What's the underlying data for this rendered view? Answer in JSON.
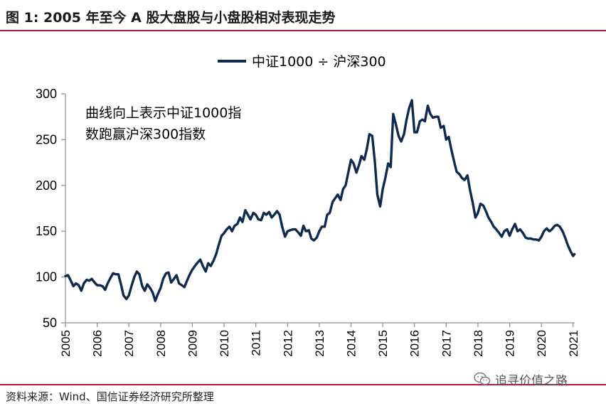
{
  "header": {
    "title": "图 1:  2005 年至今 A 股大盘股与小盘股相对表现走势"
  },
  "footer": {
    "source": "资料来源：Wind、国信证券经济研究所整理",
    "watermark_text": "追寻价值之路",
    "watermark_icon": "wechat-icon"
  },
  "colors": {
    "series": "#0f2a4f",
    "accent_rule": "#b3193a"
  },
  "chart_data": {
    "type": "line",
    "legend_position": "top-center",
    "grid": false,
    "ylim": [
      50,
      300
    ],
    "xlim": [
      2005,
      2021.05
    ],
    "y_ticks": [
      50,
      100,
      150,
      200,
      250,
      300
    ],
    "x_ticks": [
      "2005",
      "2006",
      "2007",
      "2008",
      "2009",
      "2010",
      "2011",
      "2012",
      "2013",
      "2014",
      "2015",
      "2016",
      "2017",
      "2018",
      "2019",
      "2020",
      "2021"
    ],
    "annotation": [
      "曲线向上表示中证1000指",
      "数跑赢沪深300指数"
    ],
    "series": [
      {
        "name": "中证1000 ÷ 沪深300",
        "x": [
          2005.0,
          2005.08,
          2005.17,
          2005.25,
          2005.33,
          2005.42,
          2005.5,
          2005.58,
          2005.67,
          2005.75,
          2005.83,
          2005.92,
          2006.0,
          2006.08,
          2006.17,
          2006.25,
          2006.33,
          2006.42,
          2006.5,
          2006.58,
          2006.67,
          2006.75,
          2006.83,
          2006.92,
          2007.0,
          2007.08,
          2007.17,
          2007.25,
          2007.33,
          2007.42,
          2007.5,
          2007.58,
          2007.67,
          2007.75,
          2007.83,
          2007.92,
          2008.0,
          2008.08,
          2008.17,
          2008.25,
          2008.33,
          2008.42,
          2008.5,
          2008.58,
          2008.67,
          2008.75,
          2008.83,
          2008.92,
          2009.0,
          2009.08,
          2009.17,
          2009.25,
          2009.33,
          2009.42,
          2009.5,
          2009.58,
          2009.67,
          2009.75,
          2009.83,
          2009.92,
          2010.0,
          2010.08,
          2010.17,
          2010.25,
          2010.33,
          2010.42,
          2010.5,
          2010.58,
          2010.67,
          2010.75,
          2010.83,
          2010.92,
          2011.0,
          2011.08,
          2011.17,
          2011.25,
          2011.33,
          2011.42,
          2011.5,
          2011.58,
          2011.67,
          2011.75,
          2011.83,
          2011.92,
          2012.0,
          2012.08,
          2012.17,
          2012.25,
          2012.33,
          2012.42,
          2012.5,
          2012.58,
          2012.67,
          2012.75,
          2012.83,
          2012.92,
          2013.0,
          2013.08,
          2013.17,
          2013.25,
          2013.33,
          2013.42,
          2013.5,
          2013.58,
          2013.67,
          2013.75,
          2013.83,
          2013.92,
          2014.0,
          2014.08,
          2014.17,
          2014.25,
          2014.33,
          2014.42,
          2014.5,
          2014.58,
          2014.67,
          2014.75,
          2014.83,
          2014.92,
          2015.0,
          2015.08,
          2015.17,
          2015.25,
          2015.33,
          2015.42,
          2015.5,
          2015.58,
          2015.67,
          2015.75,
          2015.83,
          2015.92,
          2016.0,
          2016.08,
          2016.17,
          2016.25,
          2016.33,
          2016.42,
          2016.5,
          2016.58,
          2016.67,
          2016.75,
          2016.83,
          2016.92,
          2017.0,
          2017.08,
          2017.17,
          2017.25,
          2017.33,
          2017.42,
          2017.5,
          2017.58,
          2017.67,
          2017.75,
          2017.83,
          2017.92,
          2018.0,
          2018.08,
          2018.17,
          2018.25,
          2018.33,
          2018.42,
          2018.5,
          2018.58,
          2018.67,
          2018.75,
          2018.83,
          2018.92,
          2019.0,
          2019.08,
          2019.17,
          2019.25,
          2019.33,
          2019.42,
          2019.5,
          2019.58,
          2019.67,
          2019.75,
          2019.83,
          2019.92,
          2020.0,
          2020.08,
          2020.17,
          2020.25,
          2020.33,
          2020.42,
          2020.5,
          2020.58,
          2020.67,
          2020.75,
          2020.83,
          2020.92,
          2021.0,
          2021.04
        ],
        "values": [
          101,
          102,
          96,
          90,
          93,
          91,
          85,
          93,
          97,
          96,
          98,
          94,
          91,
          91,
          90,
          86,
          93,
          99,
          104,
          103,
          103,
          92,
          80,
          76,
          80,
          90,
          100,
          106,
          103,
          90,
          85,
          92,
          88,
          83,
          74,
          82,
          88,
          98,
          104,
          105,
          94,
          98,
          102,
          93,
          91,
          89,
          96,
          103,
          108,
          112,
          116,
          119,
          112,
          106,
          115,
          112,
          118,
          125,
          135,
          145,
          148,
          152,
          155,
          150,
          156,
          158,
          165,
          160,
          173,
          168,
          163,
          170,
          168,
          163,
          162,
          170,
          168,
          171,
          165,
          168,
          172,
          168,
          155,
          144,
          150,
          151,
          152,
          152,
          149,
          145,
          156,
          150,
          151,
          142,
          140,
          143,
          150,
          155,
          155,
          168,
          170,
          182,
          186,
          190,
          184,
          196,
          200,
          215,
          228,
          224,
          214,
          222,
          232,
          228,
          240,
          256,
          254,
          226,
          190,
          177,
          196,
          208,
          224,
          220,
          278,
          266,
          254,
          248,
          256,
          272,
          284,
          293,
          258,
          258,
          270,
          272,
          270,
          287,
          278,
          274,
          275,
          275,
          263,
          265,
          250,
          253,
          238,
          226,
          215,
          212,
          208,
          206,
          211,
          195,
          182,
          165,
          170,
          180,
          178,
          172,
          165,
          160,
          155,
          152,
          148,
          144,
          150,
          152,
          145,
          152,
          158,
          150,
          152,
          148,
          143,
          142,
          142,
          141,
          141,
          140,
          144,
          150,
          153,
          150,
          152,
          156,
          157,
          155,
          150,
          143,
          135,
          128,
          123,
          125
        ]
      }
    ]
  }
}
